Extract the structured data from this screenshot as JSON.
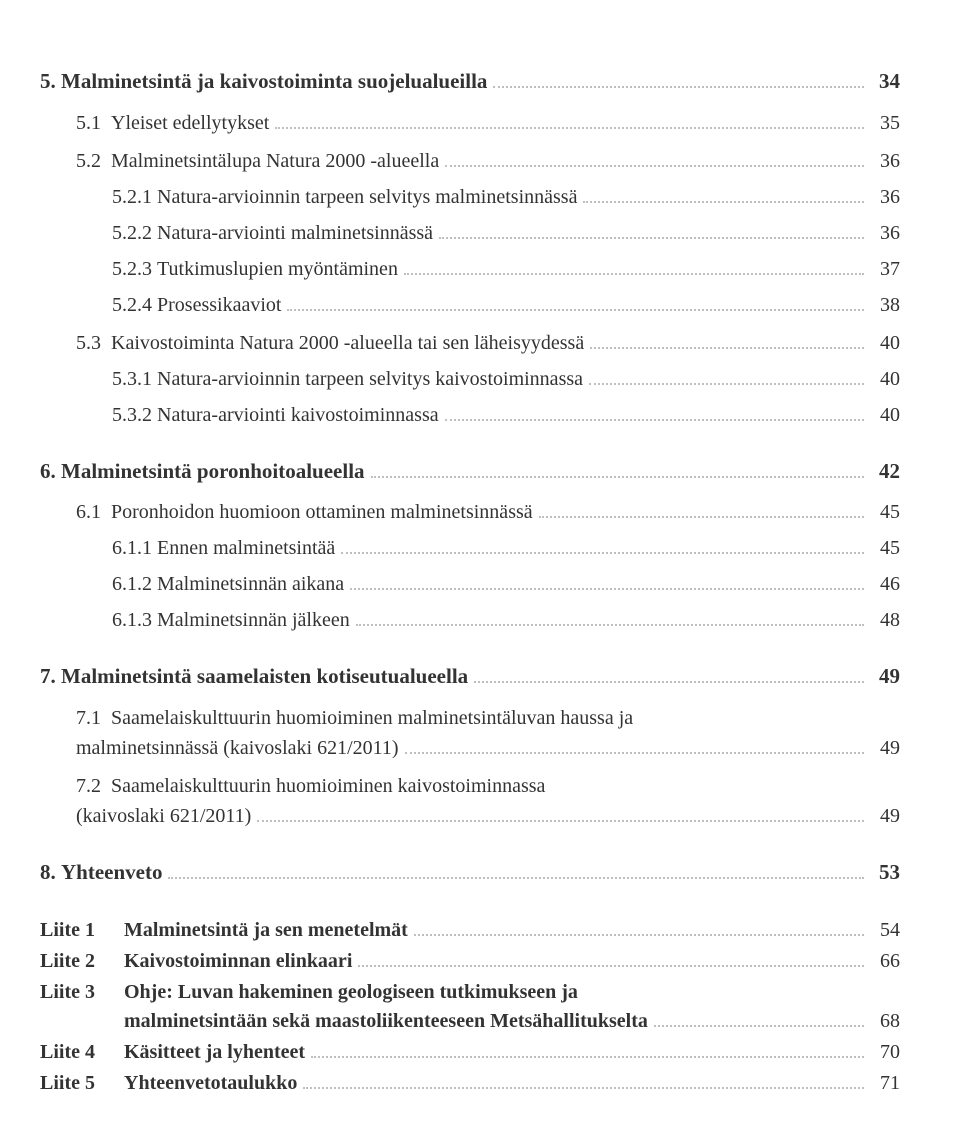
{
  "toc": [
    {
      "level": 1,
      "num": "5.",
      "title": "Malminetsintä ja kaivostoiminta suojelualueilla",
      "page": "34"
    },
    {
      "level": 2,
      "num": "5.1",
      "title": "Yleiset edellytykset",
      "page": "35"
    },
    {
      "level": 2,
      "num": "5.2",
      "title": "Malminetsintälupa Natura 2000 -alueella",
      "page": "36"
    },
    {
      "level": 3,
      "num": "5.2.1",
      "title": "Natura-arvioinnin tarpeen selvitys malminetsinnässä",
      "page": "36"
    },
    {
      "level": 3,
      "num": "5.2.2",
      "title": "Natura-arviointi malminetsinnässä",
      "page": "36"
    },
    {
      "level": 3,
      "num": "5.2.3",
      "title": "Tutkimuslupien myöntäminen",
      "page": "37"
    },
    {
      "level": 3,
      "num": "5.2.4",
      "title": "Prosessikaaviot",
      "page": "38"
    },
    {
      "level": 2,
      "num": "5.3",
      "title": "Kaivostoiminta Natura 2000 -alueella tai sen läheisyydessä",
      "page": "40"
    },
    {
      "level": 3,
      "num": "5.3.1",
      "title": "Natura-arvioinnin tarpeen selvitys kaivostoiminnassa",
      "page": "40"
    },
    {
      "level": 3,
      "num": "5.3.2",
      "title": "Natura-arviointi kaivostoiminnassa",
      "page": "40"
    },
    {
      "level": 1,
      "num": "6.",
      "title": "Malminetsintä poronhoitoalueella",
      "page": "42"
    },
    {
      "level": 2,
      "num": "6.1",
      "title": "Poronhoidon huomioon ottaminen malminetsinnässä",
      "page": "45"
    },
    {
      "level": 3,
      "num": "6.1.1",
      "title": "Ennen malminetsintää",
      "page": "45"
    },
    {
      "level": 3,
      "num": "6.1.2",
      "title": "Malminetsinnän aikana",
      "page": "46"
    },
    {
      "level": 3,
      "num": "6.1.3",
      "title": "Malminetsinnän jälkeen",
      "page": "48"
    },
    {
      "level": 1,
      "num": "7.",
      "title": "Malminetsintä saamelaisten kotiseutualueella",
      "page": "49"
    },
    {
      "level": 2,
      "num": "7.1",
      "title_line1": "Saamelaiskulttuurin huomioiminen malminetsintäluvan haussa ja",
      "title_line2": "malminetsinnässä (kaivoslaki 621/2011)",
      "page": "49",
      "multiline": true
    },
    {
      "level": 2,
      "num": "7.2",
      "title_line1": "Saamelaiskulttuurin huomioiminen kaivostoiminnassa",
      "title_line2": "(kaivoslaki 621/2011)",
      "page": "49",
      "multiline": true
    },
    {
      "level": 1,
      "num": "8.",
      "title": "Yhteenveto",
      "page": "53"
    }
  ],
  "appendices": [
    {
      "key": "Liite 1",
      "title": "Malminetsintä ja sen menetelmät",
      "page": "54"
    },
    {
      "key": "Liite 2",
      "title": "Kaivostoiminnan elinkaari",
      "page": "66"
    },
    {
      "key": "Liite 3",
      "title_line1": "Ohje: Luvan hakeminen geologiseen tutkimukseen ja",
      "title_line2": "malminetsintään sekä maastoliikenteeseen Metsähallitukselta",
      "page": "68",
      "multiline": true
    },
    {
      "key": "Liite 4",
      "title": "Käsitteet ja lyhenteet",
      "page": "70"
    },
    {
      "key": "Liite 5",
      "title": "Yhteenvetotaulukko",
      "page": "71"
    }
  ]
}
